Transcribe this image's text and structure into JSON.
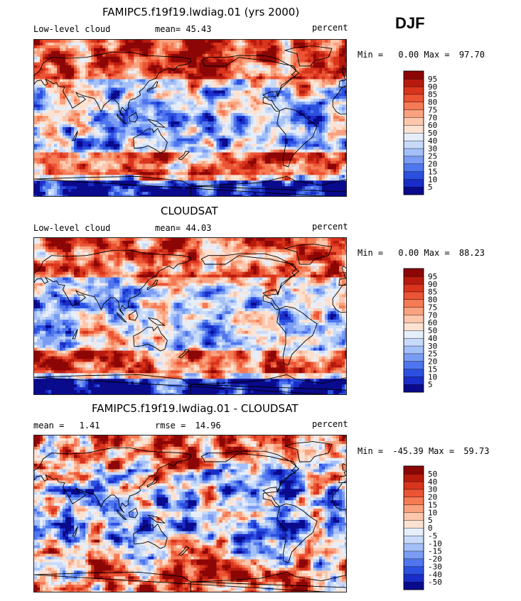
{
  "season": "DJF",
  "colors": {
    "sequential": [
      "#0a0a8c",
      "#1a2dc8",
      "#2b50e0",
      "#4f76ee",
      "#7a9cf4",
      "#a4c0f8",
      "#c8daf9",
      "#e6eefa",
      "#fde2d2",
      "#fcc7ad",
      "#f9a27f",
      "#f57b55",
      "#eb5434",
      "#d9341c",
      "#b81b0e",
      "#8c0606"
    ],
    "difference": [
      "#0a0a8c",
      "#1a2dc8",
      "#2b50e0",
      "#4f76ee",
      "#7a9cf4",
      "#a4c0f8",
      "#c8daf9",
      "#e6eefa",
      "#fde2d2",
      "#fcc7ad",
      "#f9a27f",
      "#f57b55",
      "#eb5434",
      "#d9341c",
      "#b81b0e",
      "#8c0606"
    ]
  },
  "chart_data": [
    {
      "type": "heatmap",
      "title": "FAMIPC5.f19f19.lwdiag.01 (yrs 2000)",
      "variable": "Low-level cloud",
      "mean_label": "mean=",
      "mean": "45.43",
      "units": "percent",
      "min_label": "Min =",
      "min": "0.00",
      "max_label": "Max =",
      "max": "97.70",
      "colorbar_levels": [
        "5",
        "10",
        "15",
        "20",
        "25",
        "30",
        "40",
        "50",
        "60",
        "70",
        "75",
        "80",
        "85",
        "90",
        "95"
      ]
    },
    {
      "type": "heatmap",
      "title": "CLOUDSAT",
      "variable": "Low-level cloud",
      "mean_label": "mean=",
      "mean": "44.03",
      "units": "percent",
      "min_label": "Min =",
      "min": "0.00",
      "max_label": "Max =",
      "max": "88.23",
      "colorbar_levels": [
        "5",
        "10",
        "15",
        "20",
        "25",
        "30",
        "40",
        "50",
        "60",
        "70",
        "75",
        "80",
        "85",
        "90",
        "95"
      ]
    },
    {
      "type": "heatmap",
      "title": "FAMIPC5.f19f19.lwdiag.01 - CLOUDSAT",
      "mean_label": "mean =",
      "mean": "1.41",
      "rmse_label": "rmse =",
      "rmse": "14.96",
      "units": "percent",
      "min_label": "Min =",
      "min": "-45.39",
      "max_label": "Max =",
      "max": "59.73",
      "colorbar_levels": [
        "-50",
        "-40",
        "-30",
        "-20",
        "-15",
        "-10",
        "-5",
        "0",
        "5",
        "10",
        "15",
        "20",
        "30",
        "40",
        "50"
      ]
    }
  ]
}
